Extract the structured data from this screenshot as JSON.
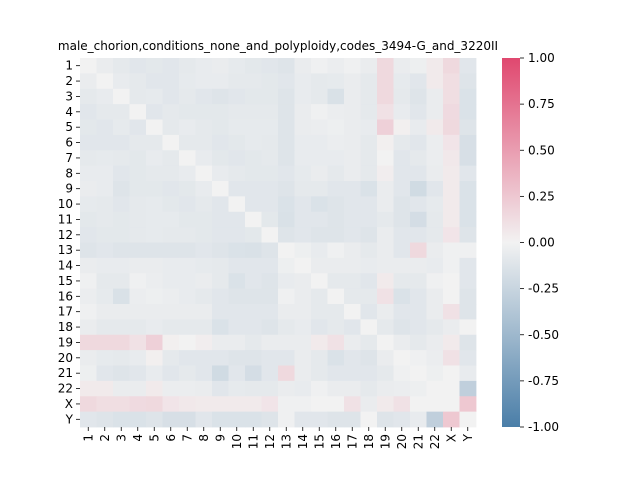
{
  "chart_data": {
    "type": "heatmap",
    "title": "male_chorion,conditions_none_and_polyploidy,codes_3494-G_and_3220II",
    "labels": [
      "1",
      "2",
      "3",
      "4",
      "5",
      "6",
      "7",
      "8",
      "9",
      "10",
      "11",
      "12",
      "13",
      "14",
      "15",
      "16",
      "17",
      "18",
      "19",
      "20",
      "21",
      "22",
      "X",
      "Y"
    ],
    "colorbar": {
      "vmin": -1.0,
      "vmax": 1.0,
      "ticks": [
        "-1.00",
        "-0.75",
        "-0.50",
        "-0.25",
        "0.00",
        "0.25",
        "0.50",
        "0.75",
        "1.00"
      ],
      "color_low": "#4a7ea8",
      "color_mid": "#f2f2f2",
      "color_high": "#e0486f"
    },
    "values": [
      [
        0.0,
        -0.05,
        -0.08,
        -0.1,
        -0.09,
        -0.1,
        -0.08,
        -0.06,
        -0.05,
        -0.07,
        -0.09,
        -0.1,
        -0.12,
        -0.05,
        -0.02,
        -0.04,
        -0.02,
        -0.05,
        0.15,
        -0.05,
        -0.03,
        0.05,
        0.15,
        -0.1
      ],
      [
        -0.05,
        0.0,
        -0.06,
        -0.08,
        -0.1,
        -0.1,
        -0.07,
        -0.06,
        -0.06,
        -0.08,
        -0.08,
        -0.09,
        -0.1,
        -0.06,
        -0.08,
        -0.07,
        -0.05,
        -0.08,
        0.15,
        -0.07,
        -0.1,
        0.05,
        0.12,
        -0.12
      ],
      [
        -0.08,
        -0.06,
        0.0,
        -0.08,
        -0.07,
        -0.1,
        -0.08,
        -0.1,
        -0.12,
        -0.1,
        -0.09,
        -0.09,
        -0.12,
        -0.06,
        -0.08,
        -0.15,
        -0.05,
        -0.08,
        0.15,
        -0.08,
        -0.12,
        -0.05,
        0.12,
        -0.14
      ],
      [
        -0.1,
        -0.08,
        -0.08,
        0.0,
        -0.1,
        -0.08,
        -0.09,
        -0.09,
        -0.09,
        -0.08,
        -0.08,
        -0.08,
        -0.12,
        -0.05,
        -0.02,
        -0.04,
        -0.05,
        -0.08,
        0.1,
        -0.06,
        -0.1,
        -0.05,
        0.14,
        -0.14
      ],
      [
        -0.09,
        -0.1,
        -0.07,
        -0.1,
        0.0,
        -0.08,
        -0.06,
        -0.08,
        -0.09,
        -0.07,
        -0.07,
        -0.07,
        -0.12,
        -0.05,
        -0.04,
        -0.03,
        -0.05,
        -0.06,
        0.2,
        0.02,
        -0.06,
        0.05,
        0.15,
        -0.12
      ],
      [
        -0.1,
        -0.1,
        -0.1,
        -0.08,
        -0.08,
        0.0,
        -0.08,
        -0.08,
        -0.1,
        -0.09,
        -0.07,
        -0.08,
        -0.12,
        -0.06,
        -0.06,
        -0.04,
        -0.05,
        -0.08,
        0.02,
        -0.08,
        -0.1,
        -0.04,
        0.08,
        -0.16
      ],
      [
        -0.08,
        -0.07,
        -0.08,
        -0.09,
        -0.06,
        -0.08,
        0.0,
        -0.06,
        -0.09,
        -0.1,
        -0.09,
        -0.08,
        -0.12,
        -0.06,
        -0.06,
        -0.06,
        -0.05,
        -0.08,
        0.0,
        -0.1,
        -0.08,
        -0.04,
        0.06,
        -0.16
      ],
      [
        -0.06,
        -0.06,
        -0.1,
        -0.09,
        -0.08,
        -0.08,
        -0.06,
        0.0,
        -0.06,
        -0.08,
        -0.09,
        -0.09,
        -0.1,
        -0.07,
        -0.05,
        -0.08,
        -0.05,
        -0.08,
        0.03,
        -0.1,
        -0.1,
        -0.05,
        0.05,
        -0.1
      ],
      [
        -0.05,
        -0.06,
        -0.12,
        -0.09,
        -0.09,
        -0.1,
        -0.09,
        -0.06,
        0.0,
        -0.1,
        -0.1,
        -0.1,
        -0.12,
        -0.08,
        -0.08,
        -0.1,
        -0.1,
        -0.14,
        -0.05,
        -0.1,
        -0.2,
        -0.1,
        0.05,
        -0.14
      ],
      [
        -0.07,
        -0.08,
        -0.1,
        -0.08,
        -0.07,
        -0.09,
        -0.1,
        -0.08,
        -0.1,
        0.0,
        -0.1,
        -0.1,
        -0.14,
        -0.1,
        -0.14,
        -0.12,
        -0.1,
        -0.1,
        -0.05,
        -0.12,
        -0.1,
        -0.07,
        0.05,
        -0.14
      ],
      [
        -0.09,
        -0.08,
        -0.09,
        -0.08,
        -0.07,
        -0.07,
        -0.09,
        -0.09,
        -0.1,
        -0.1,
        0.0,
        -0.09,
        -0.15,
        -0.1,
        -0.1,
        -0.12,
        -0.1,
        -0.1,
        -0.08,
        -0.12,
        -0.18,
        -0.08,
        0.05,
        -0.14
      ],
      [
        -0.1,
        -0.09,
        -0.09,
        -0.08,
        -0.07,
        -0.08,
        -0.08,
        -0.09,
        -0.1,
        -0.1,
        -0.09,
        0.0,
        -0.12,
        -0.1,
        -0.12,
        -0.12,
        -0.1,
        -0.12,
        -0.05,
        -0.1,
        -0.1,
        -0.08,
        0.08,
        -0.12
      ],
      [
        -0.12,
        -0.1,
        -0.12,
        -0.12,
        -0.12,
        -0.12,
        -0.12,
        -0.1,
        -0.12,
        -0.14,
        -0.15,
        -0.12,
        0.0,
        -0.03,
        -0.06,
        -0.02,
        -0.05,
        -0.08,
        -0.05,
        -0.1,
        0.15,
        -0.05,
        -0.02,
        -0.02
      ],
      [
        -0.05,
        -0.06,
        -0.06,
        -0.05,
        -0.05,
        -0.06,
        -0.06,
        -0.07,
        -0.08,
        -0.1,
        -0.1,
        -0.1,
        -0.03,
        0.0,
        -0.05,
        -0.05,
        -0.05,
        -0.06,
        -0.05,
        -0.05,
        -0.05,
        -0.06,
        -0.02,
        -0.1
      ],
      [
        -0.02,
        -0.08,
        -0.08,
        -0.02,
        -0.04,
        -0.06,
        -0.06,
        -0.05,
        -0.08,
        -0.14,
        -0.1,
        -0.12,
        -0.06,
        -0.05,
        0.0,
        -0.08,
        -0.08,
        -0.1,
        0.05,
        -0.08,
        -0.08,
        -0.02,
        0.0,
        -0.1
      ],
      [
        -0.04,
        -0.07,
        -0.15,
        -0.04,
        -0.03,
        -0.04,
        -0.06,
        -0.08,
        -0.1,
        -0.12,
        -0.12,
        -0.12,
        -0.02,
        -0.05,
        -0.08,
        0.0,
        -0.08,
        -0.08,
        0.1,
        -0.14,
        -0.1,
        -0.05,
        0.0,
        -0.12
      ],
      [
        -0.02,
        -0.05,
        -0.05,
        -0.05,
        -0.05,
        -0.05,
        -0.05,
        -0.05,
        -0.1,
        -0.1,
        -0.1,
        -0.1,
        -0.05,
        -0.05,
        -0.08,
        -0.08,
        0.0,
        -0.1,
        -0.05,
        -0.1,
        -0.1,
        -0.05,
        0.1,
        -0.12
      ],
      [
        -0.05,
        -0.08,
        -0.08,
        -0.08,
        -0.06,
        -0.08,
        -0.08,
        -0.08,
        -0.14,
        -0.1,
        -0.1,
        -0.12,
        -0.08,
        -0.06,
        -0.1,
        -0.08,
        -0.1,
        0.0,
        -0.08,
        -0.12,
        -0.1,
        -0.08,
        -0.05,
        0.0
      ],
      [
        0.15,
        0.15,
        0.15,
        0.1,
        0.2,
        0.02,
        0.0,
        0.03,
        -0.05,
        -0.05,
        -0.08,
        -0.05,
        -0.05,
        -0.05,
        0.05,
        0.1,
        -0.05,
        -0.08,
        0.0,
        -0.05,
        -0.08,
        -0.05,
        0.05,
        -0.12
      ],
      [
        -0.05,
        -0.07,
        -0.08,
        -0.06,
        0.02,
        -0.08,
        -0.1,
        -0.1,
        -0.1,
        -0.12,
        -0.12,
        -0.1,
        -0.1,
        -0.05,
        -0.08,
        -0.14,
        -0.1,
        -0.12,
        -0.05,
        0.0,
        -0.02,
        -0.04,
        0.1,
        -0.1
      ],
      [
        -0.03,
        -0.1,
        -0.12,
        -0.1,
        -0.06,
        -0.1,
        -0.08,
        -0.1,
        -0.2,
        -0.1,
        -0.18,
        -0.1,
        0.15,
        -0.05,
        -0.08,
        -0.1,
        -0.1,
        -0.1,
        -0.08,
        -0.02,
        0.0,
        -0.03,
        0.0,
        -0.06
      ],
      [
        0.05,
        0.05,
        -0.05,
        -0.05,
        0.05,
        -0.04,
        -0.04,
        -0.05,
        -0.1,
        -0.07,
        -0.08,
        -0.08,
        -0.05,
        -0.06,
        -0.02,
        -0.05,
        -0.05,
        -0.08,
        -0.05,
        -0.04,
        -0.03,
        0.0,
        0.0,
        -0.3
      ],
      [
        0.15,
        0.12,
        0.12,
        0.14,
        0.15,
        0.08,
        0.06,
        0.05,
        0.05,
        0.05,
        0.05,
        0.08,
        -0.02,
        -0.02,
        0.0,
        0.0,
        0.1,
        -0.05,
        0.05,
        0.1,
        0.0,
        0.0,
        0.0,
        0.25
      ],
      [
        -0.1,
        -0.12,
        -0.14,
        -0.14,
        -0.12,
        -0.16,
        -0.16,
        -0.1,
        -0.14,
        -0.14,
        -0.14,
        -0.12,
        -0.02,
        -0.1,
        -0.1,
        -0.12,
        -0.12,
        0.0,
        -0.12,
        -0.1,
        -0.06,
        -0.3,
        0.25,
        0.0
      ]
    ]
  }
}
